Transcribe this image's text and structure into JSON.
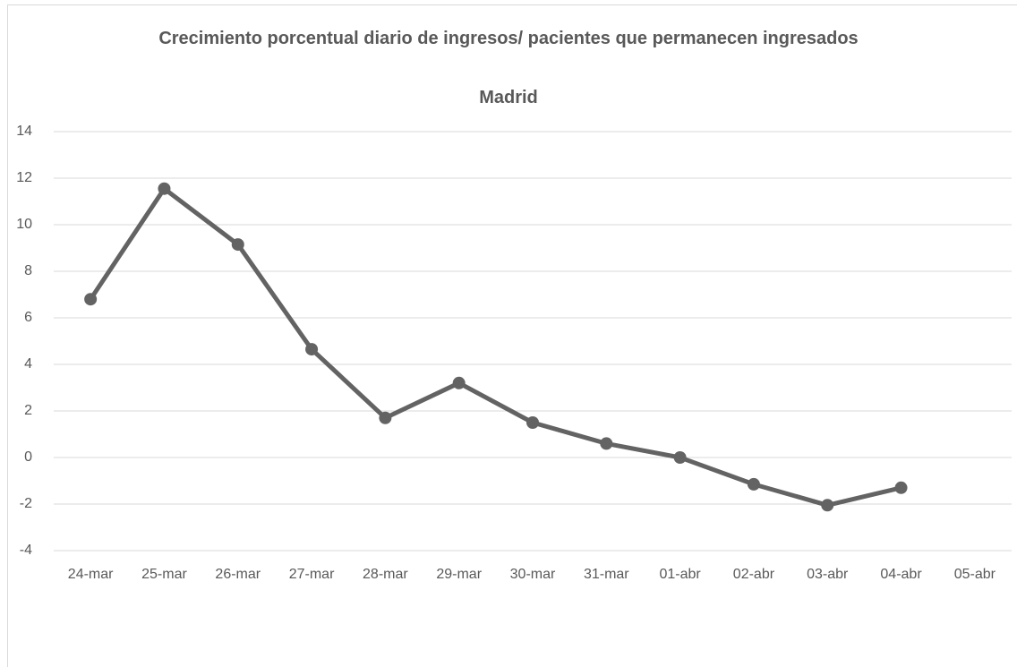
{
  "chart_data": {
    "type": "line",
    "title": "Crecimiento porcentual diario de ingresos/ pacientes que permanecen ingresados",
    "subtitle": "Madrid",
    "categories": [
      "24-mar",
      "25-mar",
      "26-mar",
      "27-mar",
      "28-mar",
      "29-mar",
      "30-mar",
      "31-mar",
      "01-abr",
      "02-abr",
      "03-abr",
      "04-abr",
      "05-abr"
    ],
    "values": [
      6.8,
      11.55,
      9.15,
      4.65,
      1.7,
      3.2,
      1.5,
      0.6,
      0,
      -1.15,
      -2.05,
      -1.3,
      null
    ],
    "color": "#636363",
    "ylim": [
      -4,
      14
    ],
    "yticks": [
      -4,
      -2,
      0,
      2,
      4,
      6,
      8,
      10,
      12,
      14
    ],
    "grid": true
  }
}
